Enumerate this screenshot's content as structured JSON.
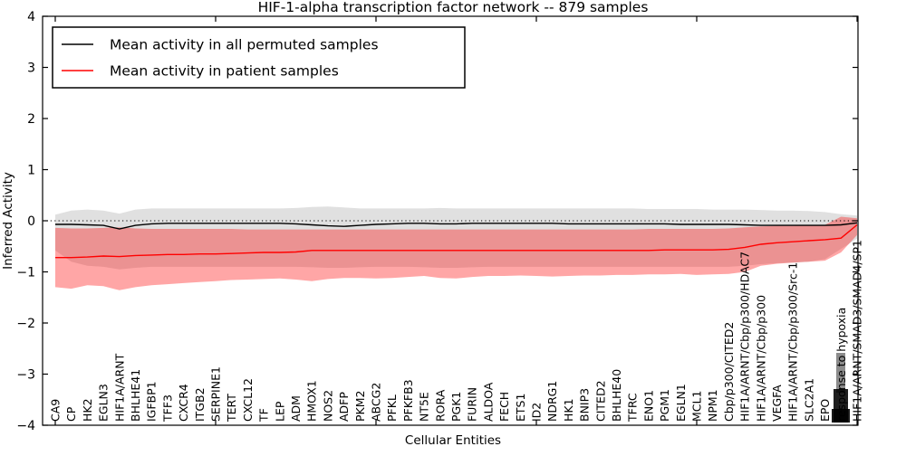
{
  "title": "HIF-1-alpha transcription factor network -- 879 samples",
  "legend": {
    "position": "upper-left",
    "entries": [
      {
        "label": "Mean activity in all permuted samples",
        "color": "#000000"
      },
      {
        "label": "Mean activity in patient samples",
        "color": "#ff0000"
      }
    ]
  },
  "axes": {
    "y_label": "Inferred Activity",
    "x_label": "Cellular Entities",
    "y_ticks": [
      "4",
      "3",
      "2",
      "1",
      "0",
      "−1",
      "−2",
      "−3",
      "−4"
    ],
    "y_tick_values": [
      4,
      3,
      2,
      1,
      0,
      -1,
      -2,
      -3,
      -4
    ]
  },
  "colors": {
    "permuted_line": "#000000",
    "patient_line": "#ff0000",
    "permuted_band": "rgba(0,0,0,0.12)",
    "patient_band": "rgba(255,0,0,0.35)",
    "zero_line": "#000000"
  },
  "chart_data": {
    "type": "line",
    "title": "HIF-1-alpha transcription factor network -- 879 samples",
    "xlabel": "Cellular Entities",
    "ylabel": "Inferred Activity",
    "ylim": [
      -4,
      4
    ],
    "grid": false,
    "zero_reference_line": {
      "y": 0,
      "style": "dotted"
    },
    "categories": [
      "CA9",
      "CP",
      "HK2",
      "EGLN3",
      "HIF1A/ARNT",
      "BHLHE41",
      "IGFBP1",
      "TFF3",
      "CXCR4",
      "ITGB2",
      "SERPINE1",
      "TERT",
      "CXCL12",
      "TF",
      "LEP",
      "ADM",
      "HMOX1",
      "NOS2",
      "ADFP",
      "PKM2",
      "ABCG2",
      "PFKL",
      "PFKFB3",
      "NT5E",
      "RORA",
      "PGK1",
      "FURIN",
      "ALDOA",
      "FECH",
      "ETS1",
      "ID2",
      "NDRG1",
      "HK1",
      "BNIP3",
      "CITED2",
      "BHLHE40",
      "TFRC",
      "ENO1",
      "PGM1",
      "EGLN1",
      "MCL1",
      "NPM1",
      "Cbp/p300/CITED2",
      "HIF1A/ARNT/Cbp/p300/HDAC7",
      "HIF1A/ARNT/Cbp/p300",
      "VEGFA",
      "HIF1A/ARNT/Cbp/p300/Src-1",
      "SLC2A1",
      "EPO",
      "response to hypoxia",
      "HIF1A/ARNT/SMAD3/SMAD4/SP1"
    ],
    "trailing_label_cluster_note": "several additional x labels near the right edge overlap into an illegible black cluster",
    "series": [
      {
        "name": "Mean activity in all permuted samples",
        "color": "#000000",
        "band_color": "rgba(0,0,0,0.12)",
        "values": [
          -0.07,
          -0.07,
          -0.08,
          -0.09,
          -0.16,
          -0.09,
          -0.06,
          -0.05,
          -0.05,
          -0.05,
          -0.05,
          -0.05,
          -0.05,
          -0.05,
          -0.05,
          -0.06,
          -0.08,
          -0.1,
          -0.11,
          -0.09,
          -0.07,
          -0.06,
          -0.05,
          -0.05,
          -0.06,
          -0.06,
          -0.05,
          -0.05,
          -0.05,
          -0.05,
          -0.05,
          -0.05,
          -0.06,
          -0.06,
          -0.06,
          -0.06,
          -0.06,
          -0.06,
          -0.06,
          -0.07,
          -0.07,
          -0.07,
          -0.07,
          -0.08,
          -0.09,
          -0.09,
          -0.09,
          -0.09,
          -0.09,
          -0.08,
          -0.04
        ],
        "band_upper": [
          0.12,
          0.2,
          0.22,
          0.2,
          0.14,
          0.22,
          0.24,
          0.24,
          0.24,
          0.24,
          0.24,
          0.24,
          0.24,
          0.24,
          0.24,
          0.25,
          0.27,
          0.28,
          0.26,
          0.24,
          0.24,
          0.24,
          0.24,
          0.24,
          0.25,
          0.24,
          0.24,
          0.24,
          0.24,
          0.24,
          0.24,
          0.24,
          0.24,
          0.24,
          0.24,
          0.24,
          0.24,
          0.23,
          0.23,
          0.23,
          0.23,
          0.22,
          0.22,
          0.22,
          0.21,
          0.2,
          0.2,
          0.19,
          0.17,
          0.13,
          0.1
        ],
        "band_lower": [
          -0.58,
          -0.8,
          -0.88,
          -0.9,
          -0.95,
          -0.92,
          -0.9,
          -0.9,
          -0.9,
          -0.9,
          -0.9,
          -0.9,
          -0.9,
          -0.9,
          -0.9,
          -0.9,
          -0.91,
          -0.92,
          -0.92,
          -0.91,
          -0.9,
          -0.9,
          -0.9,
          -0.91,
          -0.92,
          -0.92,
          -0.91,
          -0.9,
          -0.9,
          -0.9,
          -0.9,
          -0.9,
          -0.9,
          -0.9,
          -0.9,
          -0.9,
          -0.9,
          -0.9,
          -0.9,
          -0.9,
          -0.9,
          -0.9,
          -0.9,
          -0.88,
          -0.85,
          -0.83,
          -0.82,
          -0.8,
          -0.75,
          -0.55,
          -0.35
        ]
      },
      {
        "name": "Mean activity in patient samples",
        "color": "#ff0000",
        "band_color": "rgba(255,0,0,0.35)",
        "values": [
          -0.72,
          -0.72,
          -0.71,
          -0.69,
          -0.7,
          -0.68,
          -0.67,
          -0.66,
          -0.66,
          -0.65,
          -0.65,
          -0.64,
          -0.63,
          -0.62,
          -0.62,
          -0.61,
          -0.58,
          -0.58,
          -0.58,
          -0.58,
          -0.58,
          -0.58,
          -0.58,
          -0.58,
          -0.58,
          -0.58,
          -0.58,
          -0.58,
          -0.58,
          -0.58,
          -0.58,
          -0.58,
          -0.58,
          -0.58,
          -0.58,
          -0.58,
          -0.58,
          -0.58,
          -0.57,
          -0.57,
          -0.57,
          -0.57,
          -0.56,
          -0.52,
          -0.46,
          -0.43,
          -0.41,
          -0.39,
          -0.37,
          -0.34,
          -0.08
        ],
        "band_upper": [
          -0.14,
          -0.15,
          -0.15,
          -0.14,
          -0.13,
          -0.15,
          -0.16,
          -0.16,
          -0.16,
          -0.16,
          -0.16,
          -0.16,
          -0.17,
          -0.17,
          -0.17,
          -0.17,
          -0.17,
          -0.17,
          -0.17,
          -0.17,
          -0.17,
          -0.17,
          -0.17,
          -0.17,
          -0.17,
          -0.17,
          -0.17,
          -0.17,
          -0.17,
          -0.17,
          -0.17,
          -0.17,
          -0.17,
          -0.17,
          -0.17,
          -0.17,
          -0.17,
          -0.16,
          -0.16,
          -0.16,
          -0.16,
          -0.16,
          -0.15,
          -0.13,
          -0.11,
          -0.1,
          -0.1,
          -0.09,
          -0.08,
          0.08,
          0.05
        ],
        "band_lower": [
          -1.3,
          -1.33,
          -1.26,
          -1.28,
          -1.36,
          -1.3,
          -1.26,
          -1.24,
          -1.22,
          -1.2,
          -1.18,
          -1.16,
          -1.15,
          -1.14,
          -1.13,
          -1.15,
          -1.18,
          -1.14,
          -1.12,
          -1.12,
          -1.13,
          -1.12,
          -1.1,
          -1.08,
          -1.12,
          -1.13,
          -1.1,
          -1.08,
          -1.08,
          -1.07,
          -1.08,
          -1.09,
          -1.08,
          -1.07,
          -1.07,
          -1.06,
          -1.06,
          -1.05,
          -1.05,
          -1.04,
          -1.06,
          -1.05,
          -1.04,
          -1.0,
          -0.88,
          -0.84,
          -0.82,
          -0.8,
          -0.78,
          -0.62,
          -0.28
        ]
      }
    ]
  }
}
